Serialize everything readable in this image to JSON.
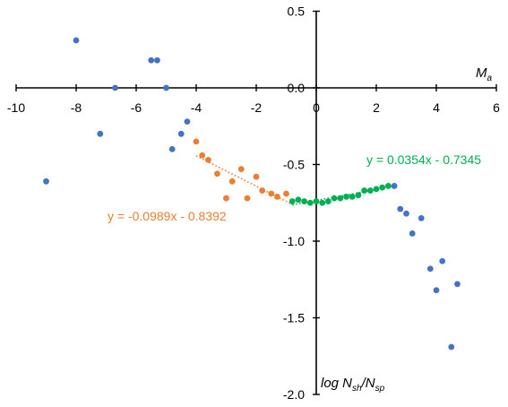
{
  "chart_data": {
    "type": "scatter",
    "title": "",
    "xlabel": "M",
    "xlabel_sub": "a",
    "ylabel_parts": [
      "log N",
      "sh",
      "/N",
      "sp"
    ],
    "xlim": [
      -10,
      6
    ],
    "ylim": [
      -2.0,
      0.5
    ],
    "xticks": [
      -10,
      -8,
      -6,
      -4,
      -2,
      0,
      2,
      4,
      6
    ],
    "xtick_labels": [
      "-10",
      "-8",
      "-6",
      "-4",
      "-2",
      "0",
      "2",
      "4",
      "6"
    ],
    "yticks": [
      0.5,
      0.0,
      -0.5,
      -1.0,
      -1.5,
      -2.0
    ],
    "ytick_labels": [
      "0.5",
      "0.0",
      "-0.5",
      "-1.0",
      "-1.5",
      "-2.0"
    ],
    "grid": false,
    "series": [
      {
        "color": "#4472C4",
        "points": [
          [
            -9.0,
            -0.61
          ],
          [
            -8.0,
            0.31
          ],
          [
            -7.2,
            -0.3
          ],
          [
            -6.7,
            0.0
          ],
          [
            -5.5,
            0.18
          ],
          [
            -5.3,
            0.18
          ],
          [
            -5.0,
            0.0
          ],
          [
            -4.8,
            -0.4
          ],
          [
            -4.5,
            -0.3
          ],
          [
            -4.3,
            -0.22
          ],
          [
            2.6,
            -0.64
          ],
          [
            2.8,
            -0.79
          ],
          [
            3.0,
            -0.82
          ],
          [
            3.2,
            -0.95
          ],
          [
            3.5,
            -0.85
          ],
          [
            3.8,
            -1.18
          ],
          [
            4.0,
            -1.32
          ],
          [
            4.2,
            -1.13
          ],
          [
            4.5,
            -1.69
          ],
          [
            4.7,
            -1.28
          ]
        ]
      },
      {
        "color": "#ED7D31",
        "points": [
          [
            -4.0,
            -0.35
          ],
          [
            -3.8,
            -0.44
          ],
          [
            -3.6,
            -0.47
          ],
          [
            -3.3,
            -0.56
          ],
          [
            -3.0,
            -0.72
          ],
          [
            -2.8,
            -0.61
          ],
          [
            -2.5,
            -0.53
          ],
          [
            -2.3,
            -0.72
          ],
          [
            -2.0,
            -0.58
          ],
          [
            -1.8,
            -0.67
          ],
          [
            -1.5,
            -0.69
          ],
          [
            -1.3,
            -0.71
          ],
          [
            -1.0,
            -0.69
          ]
        ]
      },
      {
        "color": "#00B050",
        "points": [
          [
            -0.8,
            -0.74
          ],
          [
            -0.6,
            -0.73
          ],
          [
            -0.4,
            -0.74
          ],
          [
            -0.2,
            -0.75
          ],
          [
            0.0,
            -0.74
          ],
          [
            0.2,
            -0.75
          ],
          [
            0.4,
            -0.74
          ],
          [
            0.6,
            -0.72
          ],
          [
            0.8,
            -0.72
          ],
          [
            1.0,
            -0.71
          ],
          [
            1.2,
            -0.71
          ],
          [
            1.4,
            -0.7
          ],
          [
            1.6,
            -0.67
          ],
          [
            1.8,
            -0.67
          ],
          [
            2.0,
            -0.66
          ],
          [
            2.2,
            -0.65
          ],
          [
            2.4,
            -0.64
          ]
        ]
      }
    ],
    "trendlines": [
      {
        "equation": "y = -0.0989x - 0.8392",
        "slope": -0.0989,
        "intercept": -0.8392,
        "x_range": [
          -4.0,
          -0.8
        ],
        "color": "#ED7D31",
        "style": "dotted"
      },
      {
        "equation": "y = 0.0354x - 0.7345",
        "slope": 0.0354,
        "intercept": -0.7345,
        "x_range": [
          -0.8,
          2.4
        ],
        "color": "#00B050",
        "style": "dotted"
      }
    ]
  }
}
